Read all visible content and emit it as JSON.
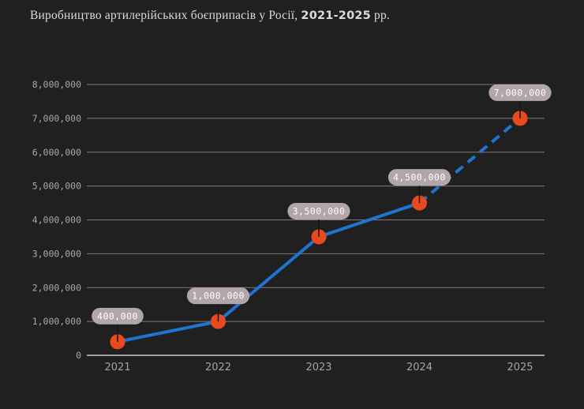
{
  "title": {
    "prefix": "Виробництво артилерійських боєприпасів у Росії, ",
    "range": "2021-2025",
    "suffix": " рр."
  },
  "colors": {
    "background": "#202020",
    "grid": "#7d7d7d",
    "axis": "#a0a0a0",
    "ytick_text": "#a8a8a8",
    "xtick_text": "#a3a3a3",
    "line": "#1e74cf",
    "point": "#e84a1e",
    "pill_bg": "#b2a5ac",
    "pill_text": "#ffffff",
    "leader": "#141414",
    "title_text": "#dcdcdc"
  },
  "chart_data": {
    "type": "line",
    "title": "Виробництво артилерійських боєприпасів у Росії, 2021-2025 рр.",
    "categories": [
      "2021",
      "2022",
      "2023",
      "2024",
      "2025"
    ],
    "values": [
      400000,
      1000000,
      3500000,
      4500000,
      7000000
    ],
    "point_labels": [
      "400,000",
      "1,000,000",
      "3,500,000",
      "4,500,000",
      "7,000,000"
    ],
    "ylim": [
      0,
      8000000
    ],
    "ytick_values": [
      0,
      1000000,
      2000000,
      3000000,
      4000000,
      5000000,
      6000000,
      7000000,
      8000000
    ],
    "ytick_labels": [
      "0",
      "1,000,000",
      "2,000,000",
      "3,000,000",
      "4,000,000",
      "5,000,000",
      "6,000,000",
      "7,000,000",
      "8,000,000"
    ],
    "xlabel": "",
    "ylabel": "",
    "grid": true,
    "legend": false,
    "dashed_last_segment": true,
    "dashed_segment_note": "segment 2024 to 2025 is dashed (projection)"
  }
}
